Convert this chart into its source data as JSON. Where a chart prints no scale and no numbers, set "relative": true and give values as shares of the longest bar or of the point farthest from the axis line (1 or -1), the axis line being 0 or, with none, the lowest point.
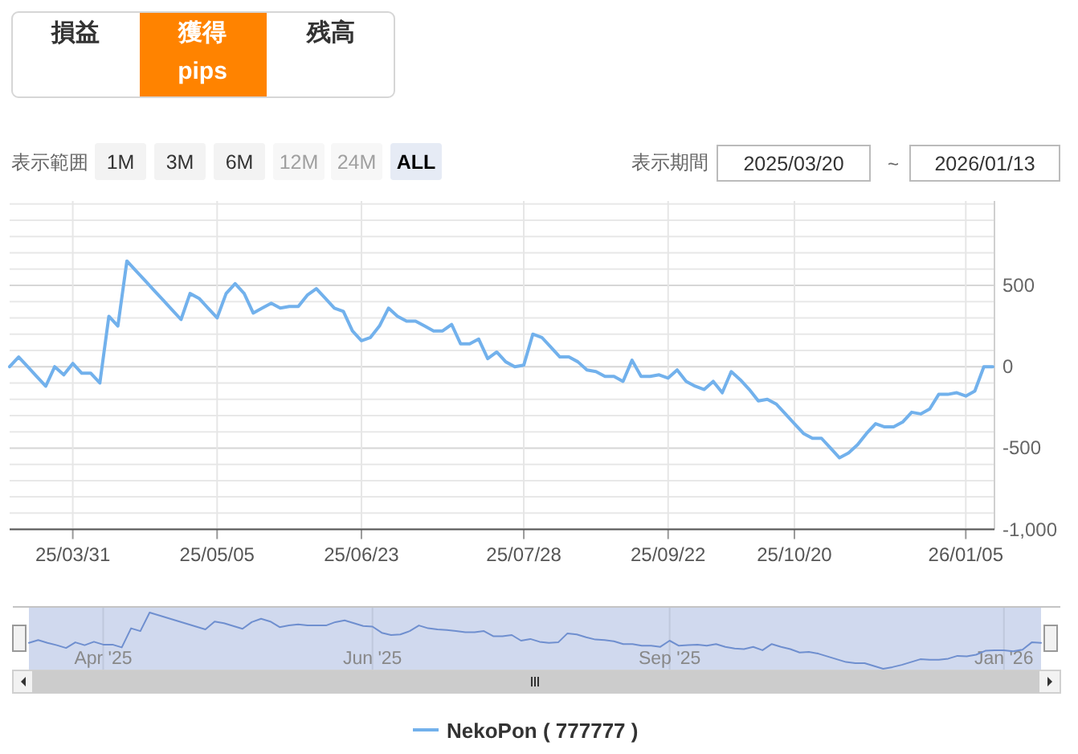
{
  "chart_data": [
    {
      "type": "line",
      "categories": [
        null,
        null,
        null,
        null,
        null,
        null,
        null,
        "25/03/31",
        null,
        null,
        null,
        null,
        null,
        null,
        null,
        null,
        null,
        null,
        null,
        null,
        null,
        null,
        null,
        "25/05/05",
        null,
        null,
        null,
        null,
        null,
        null,
        null,
        null,
        null,
        null,
        null,
        null,
        null,
        null,
        null,
        "25/06/23",
        null,
        null,
        null,
        null,
        null,
        null,
        null,
        null,
        null,
        null,
        null,
        null,
        null,
        null,
        null,
        null,
        null,
        "25/07/28",
        null,
        null,
        null,
        null,
        null,
        null,
        null,
        null,
        null,
        null,
        null,
        null,
        null,
        null,
        null,
        "25/09/22",
        null,
        null,
        null,
        null,
        null,
        null,
        null,
        null,
        null,
        null,
        null,
        null,
        null,
        "25/10/20",
        null,
        null,
        null,
        null,
        null,
        null,
        null,
        null,
        null,
        null,
        null,
        null,
        null,
        null,
        null,
        null,
        null,
        null,
        "26/01/05",
        null,
        null,
        null
      ],
      "series": [
        {
          "name": "NekoPon ( 777777 )",
          "color": "#72b1ec",
          "values": [
            0,
            60,
            0,
            -60,
            -120,
            0,
            -50,
            20,
            -40,
            -40,
            -100,
            310,
            250,
            650,
            590,
            530,
            470,
            410,
            350,
            290,
            450,
            420,
            360,
            300,
            450,
            510,
            450,
            330,
            360,
            390,
            360,
            370,
            370,
            440,
            480,
            420,
            360,
            340,
            220,
            160,
            180,
            250,
            360,
            310,
            280,
            280,
            250,
            220,
            220,
            260,
            140,
            140,
            170,
            50,
            90,
            30,
            0,
            10,
            200,
            180,
            120,
            60,
            60,
            30,
            -20,
            -30,
            -60,
            -60,
            -90,
            40,
            -60,
            -60,
            -50,
            -70,
            -20,
            -90,
            -120,
            -140,
            -90,
            -160,
            -30,
            -80,
            -140,
            -210,
            -200,
            -230,
            -290,
            -350,
            -410,
            -440,
            -440,
            -500,
            -560,
            -530,
            -480,
            -410,
            -350,
            -370,
            -370,
            -340,
            -280,
            -290,
            -260,
            -170,
            -170,
            -160,
            -180,
            -150,
            0,
            0
          ]
        }
      ],
      "ylim": [
        -1000,
        1000
      ],
      "yticks": [
        {
          "value": -1000,
          "label": "-1,000"
        },
        {
          "value": -900,
          "label": null
        },
        {
          "value": -800,
          "label": null
        },
        {
          "value": -700,
          "label": null
        },
        {
          "value": -600,
          "label": null
        },
        -500,
        {
          "value": -400,
          "label": null
        },
        {
          "value": -300,
          "label": null
        },
        {
          "value": -200,
          "label": null
        },
        {
          "value": -100,
          "label": null
        },
        0,
        {
          "value": 100,
          "label": null
        },
        {
          "value": 200,
          "label": null
        },
        {
          "value": 300,
          "label": null
        },
        {
          "value": 400,
          "label": null
        },
        500,
        {
          "value": 600,
          "label": null
        },
        {
          "value": 700,
          "label": null
        },
        {
          "value": 800,
          "label": null
        },
        {
          "value": 900,
          "label": null
        },
        {
          "value": 1000,
          "label": null
        }
      ],
      "grid": true,
      "legend": "bottom",
      "annotations": [
        "損益",
        "獲得",
        "pips",
        "残高",
        "表示範囲",
        "1M",
        "3M",
        "6M",
        "12M",
        "24M",
        "ALL",
        "表示期間",
        "2025/03/20",
        "~",
        "2026/01/13"
      ]
    },
    {
      "type": "line",
      "categories": [
        null,
        null,
        null,
        null,
        null,
        null,
        null,
        null,
        "Apr '25",
        null,
        null,
        null,
        null,
        null,
        null,
        null,
        null,
        null,
        null,
        null,
        null,
        null,
        null,
        null,
        null,
        null,
        null,
        null,
        null,
        null,
        null,
        null,
        null,
        null,
        null,
        null,
        null,
        "Jun '25",
        null,
        null,
        null,
        null,
        null,
        null,
        null,
        null,
        null,
        null,
        null,
        null,
        null,
        null,
        null,
        null,
        null,
        null,
        null,
        null,
        null,
        null,
        null,
        null,
        null,
        null,
        null,
        null,
        null,
        null,
        null,
        "Sep '25",
        null,
        null,
        null,
        null,
        null,
        null,
        null,
        null,
        null,
        null,
        null,
        null,
        null,
        null,
        null,
        null,
        null,
        null,
        null,
        null,
        null,
        null,
        null,
        null,
        null,
        null,
        null,
        null,
        null,
        null,
        null,
        null,
        null,
        null,
        null,
        "Jan '26",
        null,
        null,
        null,
        null
      ],
      "relative": true,
      "series": [
        {
          "color": "#6f8fcf",
          "values": [
            0.46,
            0.51,
            0.46,
            0.42,
            0.37,
            0.47,
            0.42,
            0.48,
            0.43,
            0.43,
            0.38,
            0.72,
            0.67,
            1,
            0.95,
            0.9,
            0.85,
            0.8,
            0.75,
            0.7,
            0.84,
            0.81,
            0.76,
            0.71,
            0.83,
            0.89,
            0.84,
            0.74,
            0.77,
            0.79,
            0.77,
            0.77,
            0.77,
            0.83,
            0.86,
            0.81,
            0.76,
            0.75,
            0.64,
            0.6,
            0.61,
            0.67,
            0.77,
            0.72,
            0.7,
            0.69,
            0.67,
            0.65,
            0.65,
            0.67,
            0.58,
            0.58,
            0.6,
            0.5,
            0.53,
            0.48,
            0.46,
            0.47,
            0.63,
            0.61,
            0.56,
            0.52,
            0.51,
            0.49,
            0.44,
            0.44,
            0.41,
            0.41,
            0.39,
            0.5,
            0.41,
            0.42,
            0.43,
            0.41,
            0.44,
            0.39,
            0.36,
            0.35,
            0.39,
            0.33,
            0.44,
            0.39,
            0.35,
            0.29,
            0.3,
            0.27,
            0.22,
            0.17,
            0.12,
            0.1,
            0.1,
            0.05,
            0,
            0.03,
            0.07,
            0.12,
            0.17,
            0.16,
            0.16,
            0.18,
            0.23,
            0.22,
            0.25,
            0.32,
            0.33,
            0.33,
            0.31,
            0.34,
            0.47,
            0.46
          ]
        }
      ],
      "grid": "x"
    }
  ]
}
